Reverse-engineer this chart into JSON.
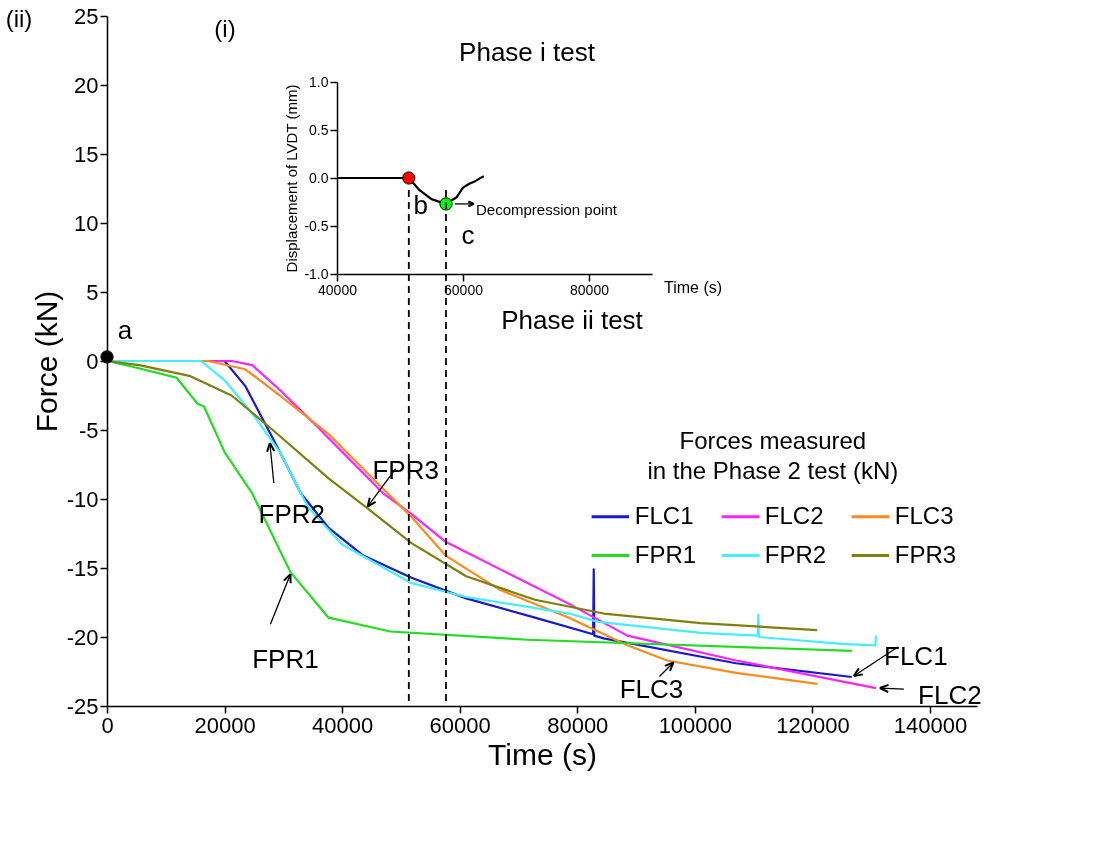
{
  "chart_data": [
    {
      "type": "line",
      "xlabel": "Time (s)",
      "ylabel": "Force (kN)",
      "legend_title": "Forces measured\nin the Phase 2 test (kN)",
      "xlim": [
        0,
        148000
      ],
      "xticks": [
        0,
        20000,
        40000,
        60000,
        80000,
        100000,
        120000,
        140000
      ],
      "ylim": [
        -25,
        25
      ],
      "yticks": [
        -25,
        -20,
        -15,
        -10,
        -5,
        0,
        5,
        10,
        15,
        20,
        25
      ],
      "grid": false,
      "legend": "right",
      "annotations": [
        "(ii)",
        "Phase ii test",
        {
          "text": "a",
          "x": 0,
          "y": 0.3
        },
        {
          "text": "FPR1",
          "x": 31200,
          "y": -15.3
        },
        {
          "text": "FPR2",
          "x": 27700,
          "y": -5.8
        },
        {
          "text": "FPR3",
          "x": 44000,
          "y": -10.7
        },
        {
          "text": "FLC1",
          "x": 126700,
          "y": -22.9
        },
        {
          "text": "FLC2",
          "x": 130800,
          "y": -23.7
        },
        {
          "text": "FLC3",
          "x": 96700,
          "y": -21.7
        }
      ],
      "series": [
        {
          "name": "FLC1",
          "color": "#1a1acc",
          "x": [
            0,
            20000,
            23500,
            28200,
            33000,
            37700,
            43600,
            51800,
            61100,
            72800,
            82700,
            82800,
            82900,
            84500,
            107000,
            126700
          ],
          "values": [
            0,
            0,
            -1.8,
            -5.6,
            -9.6,
            -12.1,
            -14.1,
            -15.7,
            -17.2,
            -18.6,
            -19.8,
            -15.1,
            -19.9,
            -20.1,
            -21.9,
            -22.9
          ]
        },
        {
          "name": "FLC2",
          "color": "#ff22ff",
          "x": [
            0,
            21200,
            24700,
            29400,
            35400,
            41200,
            47000,
            51800,
            57600,
            66900,
            78600,
            88500,
            107000,
            130800
          ],
          "values": [
            0,
            0,
            -0.3,
            -2.1,
            -4.6,
            -7.1,
            -9.6,
            -11.1,
            -13.1,
            -15.1,
            -17.6,
            -19.9,
            -21.7,
            -23.7
          ]
        },
        {
          "name": "FLC3",
          "color": "#ff8a1a",
          "x": [
            0,
            17200,
            23500,
            29400,
            37700,
            44700,
            51800,
            57600,
            66900,
            78600,
            88500,
            95300,
            107000,
            120800
          ],
          "values": [
            0,
            0,
            -0.6,
            -2.5,
            -5.3,
            -8.3,
            -11.3,
            -14.1,
            -16.6,
            -18.6,
            -20.6,
            -21.7,
            -22.6,
            -23.4
          ]
        },
        {
          "name": "FPR1",
          "color": "#22dd22",
          "x": [
            0,
            4200,
            11800,
            15400,
            16500,
            20000,
            24700,
            31200,
            37700,
            48200,
            71700,
            126700
          ],
          "values": [
            0,
            -0.4,
            -1.2,
            -3.1,
            -3.3,
            -6.6,
            -9.6,
            -15.3,
            -18.6,
            -19.6,
            -20.2,
            -21.0
          ]
        },
        {
          "name": "FPR2",
          "color": "#44eeff",
          "x": [
            0,
            16000,
            20000,
            24700,
            29400,
            34200,
            40000,
            51800,
            61100,
            78600,
            83600,
            101000,
            110700,
            110800,
            110900,
            125000,
            130700,
            130800
          ],
          "values": [
            0,
            0,
            -1.4,
            -3.8,
            -6.6,
            -10.6,
            -13.3,
            -16.1,
            -17.1,
            -18.3,
            -18.9,
            -19.7,
            -19.9,
            -18.4,
            -20.0,
            -20.5,
            -20.6,
            -19.9
          ]
        },
        {
          "name": "FPR3",
          "color": "#7f7f10",
          "x": [
            0,
            5500,
            14200,
            21200,
            28200,
            37700,
            44700,
            51800,
            61100,
            72800,
            84500,
            101000,
            120800
          ],
          "values": [
            0,
            -0.3,
            -1.1,
            -2.5,
            -5.0,
            -8.5,
            -10.8,
            -13.2,
            -15.6,
            -17.3,
            -18.3,
            -19.0,
            -19.5
          ]
        },
        {
          "type": "scatter",
          "color": "#000000",
          "x": [
            0
          ],
          "values": [
            0.3
          ]
        }
      ]
    },
    {
      "type": "line",
      "xlabel": "Time (s)",
      "ylabel": "Displacement of LVDT (mm)",
      "xlim": [
        40000,
        90000
      ],
      "xticks": [
        40000,
        60000,
        80000
      ],
      "ylim": [
        -1,
        1
      ],
      "yticks": [
        {
          "value": -1,
          "label": "-1.0"
        },
        -0.5,
        {
          "value": 0,
          "label": "0.0"
        },
        0.5,
        {
          "value": 1,
          "label": "1.0"
        }
      ],
      "grid": false,
      "annotations": [
        "(i)",
        "Phase i test",
        {
          "text": "b",
          "x": 51400,
          "y": 0
        },
        {
          "text": "c",
          "x": 57300,
          "y": -0.27
        },
        {
          "text": "Decompression point",
          "x": 57300,
          "y": -0.27
        }
      ],
      "ref_lines": [
        {
          "axis": "x",
          "value": 51400,
          "line_style": "dashed",
          "color": "#000000"
        },
        {
          "axis": "x",
          "value": 57300,
          "line_style": "dashed",
          "color": "#000000"
        }
      ],
      "series": [
        {
          "color": "#000000",
          "x": [
            40000,
            51400,
            53000,
            55000,
            57300,
            59000,
            60000,
            61000,
            62000,
            63300
          ],
          "values": [
            0,
            0,
            -0.12,
            -0.22,
            -0.27,
            -0.2,
            -0.1,
            -0.06,
            -0.03,
            0.02
          ]
        },
        {
          "type": "scatter",
          "x": [
            51400,
            57300
          ],
          "values": [
            0,
            -0.27
          ],
          "colors": [
            "#ff0000",
            "#00ff00"
          ]
        }
      ]
    }
  ]
}
